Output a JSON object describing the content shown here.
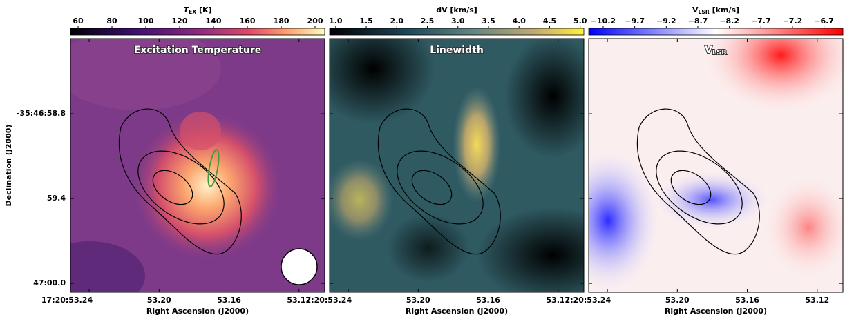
{
  "chart_data": [
    {
      "type": "image",
      "title": "Excitation Temperature",
      "cbar_label": {
        "main": "T",
        "sub": "EX",
        "rest": " [K]"
      },
      "clim": [
        55.5,
        205.7
      ],
      "cbar_ticks": [
        60,
        80,
        100,
        120,
        140,
        160,
        180,
        200
      ],
      "xlabel": "Right Ascension (J2000)",
      "xlim": [
        53.2507,
        53.1053
      ],
      "xticks": [
        {
          "value": 53.24,
          "label": "17:20:53.24"
        },
        {
          "value": 53.2,
          "label": "53.20"
        },
        {
          "value": 53.16,
          "label": "53.16"
        },
        {
          "value": 53.12,
          "label": "53.12"
        }
      ],
      "ylabel": "Declination (J2000)",
      "ylim": [
        58.268,
        60.063
      ],
      "yticks": [
        {
          "value": 58.8,
          "label": "-35:46:58.8"
        },
        {
          "value": 59.4,
          "label": "59.4"
        },
        {
          "value": 60.0,
          "label": "47:00.0"
        }
      ]
    },
    {
      "type": "image",
      "title": "Linewidth",
      "cbar_label": {
        "main": "dV [km/s]"
      },
      "clim": [
        0.9,
        5.06
      ],
      "cbar_ticks": [
        {
          "value": 1.0,
          "label": "1.0"
        },
        {
          "value": 1.5,
          "label": "1.5"
        },
        {
          "value": 2.0,
          "label": "2.0"
        },
        {
          "value": 2.5,
          "label": "2.5"
        },
        {
          "value": 3.0,
          "label": "3.0"
        },
        {
          "value": 3.5,
          "label": "3.5"
        },
        {
          "value": 4.0,
          "label": "4.0"
        },
        {
          "value": 4.5,
          "label": "4.5"
        },
        {
          "value": 5.0,
          "label": "5.0"
        }
      ],
      "xlabel": "Right Ascension (J2000)",
      "xlim": [
        53.2507,
        53.1053
      ],
      "xticks": [
        {
          "value": 53.24,
          "label": "17:20:53.24"
        },
        {
          "value": 53.2,
          "label": "53.20"
        },
        {
          "value": 53.16,
          "label": "53.16"
        },
        {
          "value": 53.12,
          "label": "53.12"
        }
      ]
    },
    {
      "type": "image",
      "title": {
        "main": "V",
        "sub": "LSR"
      },
      "cbar_label": {
        "main": "V",
        "sub": "LSR",
        "rest": " [km/s]"
      },
      "clim": [
        -10.43,
        -6.4
      ],
      "cbar_ticks": [
        {
          "value": -10.2,
          "label": "−10.2"
        },
        {
          "value": -9.7,
          "label": "−9.7"
        },
        {
          "value": -9.2,
          "label": "−9.2"
        },
        {
          "value": -8.7,
          "label": "−8.7"
        },
        {
          "value": -8.2,
          "label": "−8.2"
        },
        {
          "value": -7.7,
          "label": "−7.7"
        },
        {
          "value": -7.2,
          "label": "−7.2"
        },
        {
          "value": -6.7,
          "label": "−6.7"
        }
      ],
      "xlabel": "Right Ascension (J2000)",
      "xlim": [
        53.2507,
        53.1053
      ],
      "xticks": [
        {
          "value": 53.24,
          "label": "17:20:53.24"
        },
        {
          "value": 53.2,
          "label": "53.20"
        },
        {
          "value": 53.16,
          "label": "53.16"
        },
        {
          "value": 53.12,
          "label": "53.12"
        }
      ]
    }
  ]
}
